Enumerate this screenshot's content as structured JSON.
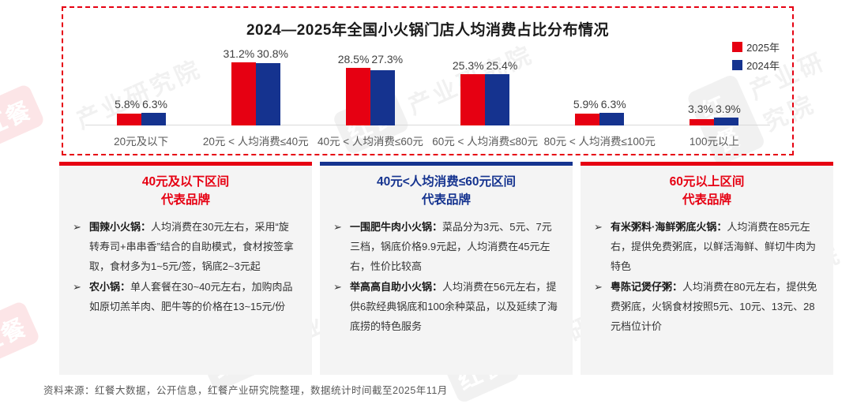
{
  "chart": {
    "title": "2024—2025年全国小火锅门店人均消费占比分布情况"
  },
  "chart_data": {
    "type": "bar",
    "title": "2024—2025年全国小火锅门店人均消费占比分布情况",
    "categories": [
      "20元及以下",
      "20元 < 人均消费≤40元",
      "40元 < 人均消费≤60元",
      "60元 < 人均消费≤80元",
      "80元 < 人均消费≤100元",
      "100元以上"
    ],
    "series": [
      {
        "name": "2025年",
        "color": "#e60012",
        "values": [
          5.8,
          31.2,
          28.5,
          25.3,
          5.9,
          3.3
        ]
      },
      {
        "name": "2024年",
        "color": "#15338f",
        "values": [
          6.3,
          30.8,
          27.3,
          25.4,
          6.3,
          3.9
        ]
      }
    ],
    "unit": "%",
    "value_label_format": "{value}%",
    "ylim": [
      0,
      35
    ],
    "grid": false,
    "legend_position": "top-right"
  },
  "panels": [
    {
      "accent": "#e60012",
      "title_line1": "40元及以下区间",
      "title_line2": "代表品牌",
      "items": [
        {
          "brand": "围辣小火锅：",
          "text": "人均消费在30元左右，采用“旋转寿司+串串香”结合的自助模式，食材按签拿取，食材多为1~5元/签，锅底2~3元起"
        },
        {
          "brand": "农小锅：",
          "text": "单人套餐在30~40元左右，加购肉品如原切羔羊肉、肥牛等的价格在13~15元/份"
        }
      ]
    },
    {
      "accent": "#15338f",
      "title_line1": "40元<人均消费≤60元区间",
      "title_line2": "代表品牌",
      "items": [
        {
          "brand": "一围肥牛肉小火锅：",
          "text": "菜品分为3元、5元、7元三档，锅底价格9.9元起，人均消费在45元左右，性价比较高"
        },
        {
          "brand": "举高高自助小火锅：",
          "text": "人均消费在56元左右，提供6款经典锅底和100余种菜品，以及延续了海底捞的特色服务"
        }
      ]
    },
    {
      "accent": "#e60012",
      "title_line1": "60元以上区间",
      "title_line2": "代表品牌",
      "items": [
        {
          "brand": "有米粥料·海鲜粥底火锅：",
          "text": "人均消费在85元左右，提供免费粥底，以鲜活海鲜、鲜切牛肉为特色"
        },
        {
          "brand": "粤陈记煲仔粥：",
          "text": "人均消费在80元左右，提供免费粥底，火锅食材按照5元、10元、13元、28元档位计价"
        }
      ]
    }
  ],
  "footer": {
    "source_note": "资料来源：红餐大数据，公开信息，红餐产业研究院整理，数据统计时间截至2025年11月"
  },
  "watermark": {
    "logo": "红餐",
    "text": "产业研究院"
  }
}
